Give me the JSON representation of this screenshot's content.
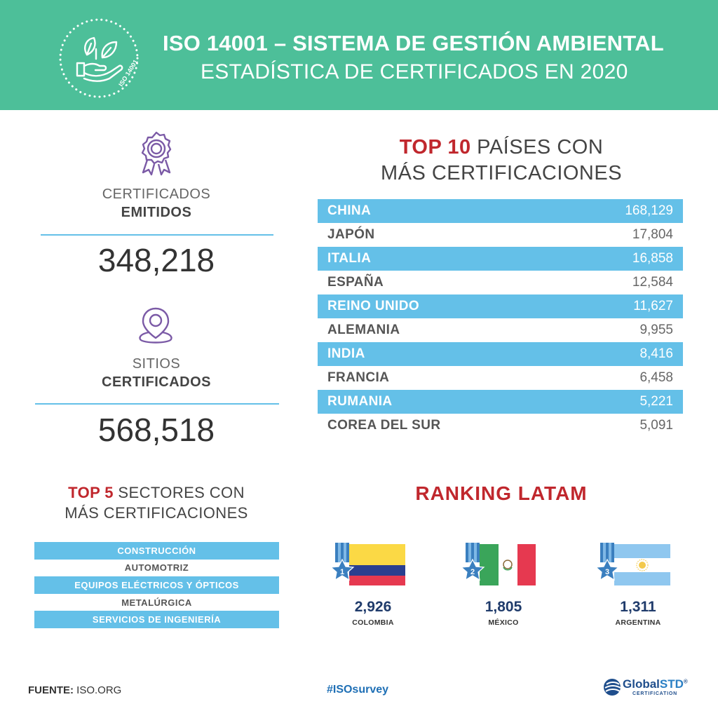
{
  "header": {
    "title": "ISO 14001 – SISTEMA DE GESTIÓN AMBIENTAL",
    "subtitle": "ESTADÍSTICA DE CERTIFICADOS EN 2020",
    "logo_text": "ISO 14001",
    "logo_icon": "leaf-hand-icon",
    "bg_color": "#4dbf99"
  },
  "stats": {
    "certificates": {
      "icon": "award-ribbon-icon",
      "label_1": "CERTIFICADOS",
      "label_2": "EMITIDOS",
      "value": "348,218"
    },
    "sites": {
      "icon": "location-pin-icon",
      "label_1": "SITIOS",
      "label_2": "CERTIFICADOS",
      "value": "568,518"
    }
  },
  "top10": {
    "title_accent": "TOP 10",
    "title_rest": " PAÍSES CON",
    "title_line2": "MÁS CERTIFICACIONES",
    "rows": [
      {
        "country": "CHINA",
        "value": "168,129"
      },
      {
        "country": "JAPÓN",
        "value": "17,804"
      },
      {
        "country": "ITALIA",
        "value": "16,858"
      },
      {
        "country": "ESPAÑA",
        "value": "12,584"
      },
      {
        "country": "REINO UNIDO",
        "value": "11,627"
      },
      {
        "country": "ALEMANIA",
        "value": "9,955"
      },
      {
        "country": "INDIA",
        "value": "8,416"
      },
      {
        "country": "FRANCIA",
        "value": "6,458"
      },
      {
        "country": "RUMANIA",
        "value": "5,221"
      },
      {
        "country": "COREA DEL SUR",
        "value": "5,091"
      }
    ]
  },
  "sectors": {
    "title_accent": "TOP 5",
    "title_rest": " SECTORES CON",
    "title_line2": "MÁS CERTIFICACIONES",
    "items": [
      "CONSTRUCCIÓN",
      "AUTOMOTRIZ",
      "EQUIPOS ELÉCTRICOS Y ÓPTICOS",
      "METALÚRGICA",
      "SERVICIOS DE INGENIERÍA"
    ]
  },
  "ranking": {
    "title": "RANKING LATAM",
    "items": [
      {
        "rank": "1",
        "value": "2,926",
        "country": "COLOMBIA",
        "flag": "colombia-flag"
      },
      {
        "rank": "2",
        "value": "1,805",
        "country": "MÉXICO",
        "flag": "mexico-flag"
      },
      {
        "rank": "3",
        "value": "1,311",
        "country": "ARGENTINA",
        "flag": "argentina-flag"
      }
    ]
  },
  "footer": {
    "source_label": "FUENTE:",
    "source_value": " ISO.ORG",
    "hashtag": "#ISOsurvey",
    "brand_a": "Global",
    "brand_b": "STD",
    "brand_mark": "®",
    "brand_sub": "CERTIFICATION"
  },
  "colors": {
    "accent_red": "#c0272d",
    "highlight_blue": "#64c0e8",
    "purple": "#7b5aa6",
    "navy": "#1f3b6b"
  }
}
